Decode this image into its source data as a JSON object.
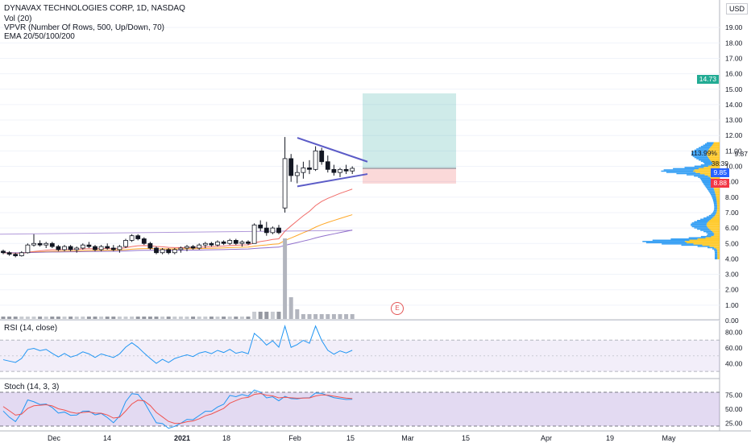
{
  "header": {
    "title": "DYNAVAX TECHNOLOGIES CORP, 1D, NASDAQ",
    "indicators": [
      "Vol (20)",
      "VPVR (Number Of Rows, 500, Up/Down, 70)",
      "EMA 20/50/100/200"
    ],
    "currency": "USD"
  },
  "price_axis": {
    "ticks": [
      "19.00",
      "18.00",
      "17.00",
      "16.00",
      "15.00",
      "14.00",
      "13.00",
      "12.00",
      "11.00",
      "10.00",
      "9.00",
      "8.00",
      "7.00",
      "6.00",
      "5.00",
      "4.00",
      "3.00",
      "2.00",
      "1.00",
      "0.00"
    ]
  },
  "price_badges": {
    "target": "14.73",
    "last_pct": "113.99%",
    "last_price": "9.87",
    "countdown": "38:39",
    "high": "9.85",
    "low": "8.88"
  },
  "colors": {
    "up": "#26a69a",
    "down": "#ef5350",
    "blue": "#2196f3",
    "orange": "#ff9800",
    "purple": "#7e57c2"
  },
  "rsi": {
    "label": "RSI (14, close)",
    "ticks": [
      "80.00",
      "60.00",
      "40.00"
    ]
  },
  "stoch": {
    "label": "Stoch (14, 3, 3)",
    "ticks": [
      "75.00",
      "50.00",
      "25.00"
    ]
  },
  "time_axis": [
    "Dec",
    "14",
    "2021",
    "18",
    "Feb",
    "15",
    "Mar",
    "15",
    "Apr",
    "19",
    "May"
  ],
  "earnings_marker": "E",
  "chart_data": {
    "type": "candlestick",
    "title": "DYNAVAX TECHNOLOGIES CORP, 1D, NASDAQ",
    "ylim": [
      0,
      19.5
    ],
    "candles": [
      {
        "d": "11-23",
        "o": 4.5,
        "h": 4.6,
        "l": 4.3,
        "c": 4.4
      },
      {
        "d": "11-24",
        "o": 4.4,
        "h": 4.5,
        "l": 4.2,
        "c": 4.3
      },
      {
        "d": "11-25",
        "o": 4.3,
        "h": 4.4,
        "l": 4.1,
        "c": 4.2
      },
      {
        "d": "11-27",
        "o": 4.2,
        "h": 4.5,
        "l": 4.15,
        "c": 4.4
      },
      {
        "d": "11-30",
        "o": 4.4,
        "h": 5.0,
        "l": 4.35,
        "c": 4.9
      },
      {
        "d": "12-01",
        "o": 4.9,
        "h": 5.6,
        "l": 4.8,
        "c": 5.0
      },
      {
        "d": "12-02",
        "o": 5.0,
        "h": 5.2,
        "l": 4.8,
        "c": 4.9
      },
      {
        "d": "12-03",
        "o": 4.9,
        "h": 5.1,
        "l": 4.7,
        "c": 5.0
      },
      {
        "d": "12-04",
        "o": 5.0,
        "h": 5.1,
        "l": 4.7,
        "c": 4.8
      },
      {
        "d": "12-07",
        "o": 4.8,
        "h": 4.9,
        "l": 4.5,
        "c": 4.6
      },
      {
        "d": "12-08",
        "o": 4.6,
        "h": 4.9,
        "l": 4.5,
        "c": 4.8
      },
      {
        "d": "12-09",
        "o": 4.8,
        "h": 4.9,
        "l": 4.5,
        "c": 4.6
      },
      {
        "d": "12-10",
        "o": 4.6,
        "h": 4.8,
        "l": 4.4,
        "c": 4.7
      },
      {
        "d": "12-11",
        "o": 4.7,
        "h": 5.0,
        "l": 4.6,
        "c": 4.9
      },
      {
        "d": "12-14",
        "o": 4.9,
        "h": 5.1,
        "l": 4.7,
        "c": 4.8
      },
      {
        "d": "12-15",
        "o": 4.8,
        "h": 4.9,
        "l": 4.5,
        "c": 4.6
      },
      {
        "d": "12-16",
        "o": 4.6,
        "h": 4.9,
        "l": 4.5,
        "c": 4.8
      },
      {
        "d": "12-17",
        "o": 4.8,
        "h": 5.0,
        "l": 4.6,
        "c": 4.7
      },
      {
        "d": "12-18",
        "o": 4.7,
        "h": 4.9,
        "l": 4.5,
        "c": 4.6
      },
      {
        "d": "12-21",
        "o": 4.6,
        "h": 4.9,
        "l": 4.4,
        "c": 4.8
      },
      {
        "d": "12-22",
        "o": 4.8,
        "h": 5.3,
        "l": 4.7,
        "c": 5.2
      },
      {
        "d": "12-23",
        "o": 5.2,
        "h": 5.6,
        "l": 5.1,
        "c": 5.5
      },
      {
        "d": "12-24",
        "o": 5.5,
        "h": 5.6,
        "l": 5.2,
        "c": 5.3
      },
      {
        "d": "12-28",
        "o": 5.3,
        "h": 5.4,
        "l": 4.9,
        "c": 5.0
      },
      {
        "d": "12-29",
        "o": 5.0,
        "h": 5.1,
        "l": 4.6,
        "c": 4.7
      },
      {
        "d": "12-30",
        "o": 4.7,
        "h": 4.8,
        "l": 4.3,
        "c": 4.4
      },
      {
        "d": "12-31",
        "o": 4.4,
        "h": 4.7,
        "l": 4.3,
        "c": 4.6
      },
      {
        "d": "01-04",
        "o": 4.6,
        "h": 4.7,
        "l": 4.3,
        "c": 4.4
      },
      {
        "d": "01-05",
        "o": 4.4,
        "h": 4.7,
        "l": 4.3,
        "c": 4.6
      },
      {
        "d": "01-06",
        "o": 4.6,
        "h": 4.8,
        "l": 4.4,
        "c": 4.7
      },
      {
        "d": "01-07",
        "o": 4.7,
        "h": 4.9,
        "l": 4.5,
        "c": 4.8
      },
      {
        "d": "01-08",
        "o": 4.8,
        "h": 4.9,
        "l": 4.6,
        "c": 4.7
      },
      {
        "d": "01-11",
        "o": 4.7,
        "h": 5.0,
        "l": 4.6,
        "c": 4.9
      },
      {
        "d": "01-12",
        "o": 4.9,
        "h": 5.1,
        "l": 4.7,
        "c": 5.0
      },
      {
        "d": "01-13",
        "o": 5.0,
        "h": 5.1,
        "l": 4.8,
        "c": 4.9
      },
      {
        "d": "01-14",
        "o": 4.9,
        "h": 5.2,
        "l": 4.8,
        "c": 5.1
      },
      {
        "d": "01-15",
        "o": 5.1,
        "h": 5.2,
        "l": 4.9,
        "c": 5.0
      },
      {
        "d": "01-19",
        "o": 5.0,
        "h": 5.3,
        "l": 4.9,
        "c": 5.2
      },
      {
        "d": "01-20",
        "o": 5.2,
        "h": 5.3,
        "l": 4.9,
        "c": 5.0
      },
      {
        "d": "01-21",
        "o": 5.0,
        "h": 5.2,
        "l": 4.8,
        "c": 5.1
      },
      {
        "d": "01-22",
        "o": 5.1,
        "h": 5.2,
        "l": 4.9,
        "c": 5.0
      },
      {
        "d": "01-25",
        "o": 5.0,
        "h": 6.3,
        "l": 5.0,
        "c": 6.2
      },
      {
        "d": "01-26",
        "o": 6.2,
        "h": 6.5,
        "l": 5.8,
        "c": 6.0
      },
      {
        "d": "01-27",
        "o": 6.0,
        "h": 6.4,
        "l": 5.5,
        "c": 5.7
      },
      {
        "d": "01-28",
        "o": 5.7,
        "h": 6.1,
        "l": 5.6,
        "c": 6.0
      },
      {
        "d": "01-29",
        "o": 6.0,
        "h": 6.2,
        "l": 5.6,
        "c": 5.7
      },
      {
        "d": "02-01",
        "o": 7.3,
        "h": 11.9,
        "l": 7.0,
        "c": 10.5
      },
      {
        "d": "02-02",
        "o": 10.5,
        "h": 10.8,
        "l": 9.0,
        "c": 9.4
      },
      {
        "d": "02-03",
        "o": 9.4,
        "h": 10.1,
        "l": 8.9,
        "c": 9.6
      },
      {
        "d": "02-04",
        "o": 9.6,
        "h": 10.3,
        "l": 9.2,
        "c": 9.9
      },
      {
        "d": "02-05",
        "o": 9.9,
        "h": 10.4,
        "l": 9.5,
        "c": 9.8
      },
      {
        "d": "02-08",
        "o": 9.8,
        "h": 11.3,
        "l": 9.7,
        "c": 11.0
      },
      {
        "d": "02-09",
        "o": 11.0,
        "h": 11.2,
        "l": 10.1,
        "c": 10.3
      },
      {
        "d": "02-10",
        "o": 10.3,
        "h": 10.7,
        "l": 9.6,
        "c": 9.8
      },
      {
        "d": "02-11",
        "o": 9.8,
        "h": 10.1,
        "l": 9.4,
        "c": 9.6
      },
      {
        "d": "02-12",
        "o": 9.6,
        "h": 9.9,
        "l": 9.3,
        "c": 9.8
      },
      {
        "d": "02-16",
        "o": 9.8,
        "h": 10.1,
        "l": 9.5,
        "c": 9.7
      },
      {
        "d": "02-17",
        "o": 9.7,
        "h": 10.0,
        "l": 9.5,
        "c": 9.87
      }
    ],
    "long_position": {
      "entry": 9.87,
      "target": 14.73,
      "stop": 8.88
    },
    "volume_profile_peak": 5.1
  }
}
